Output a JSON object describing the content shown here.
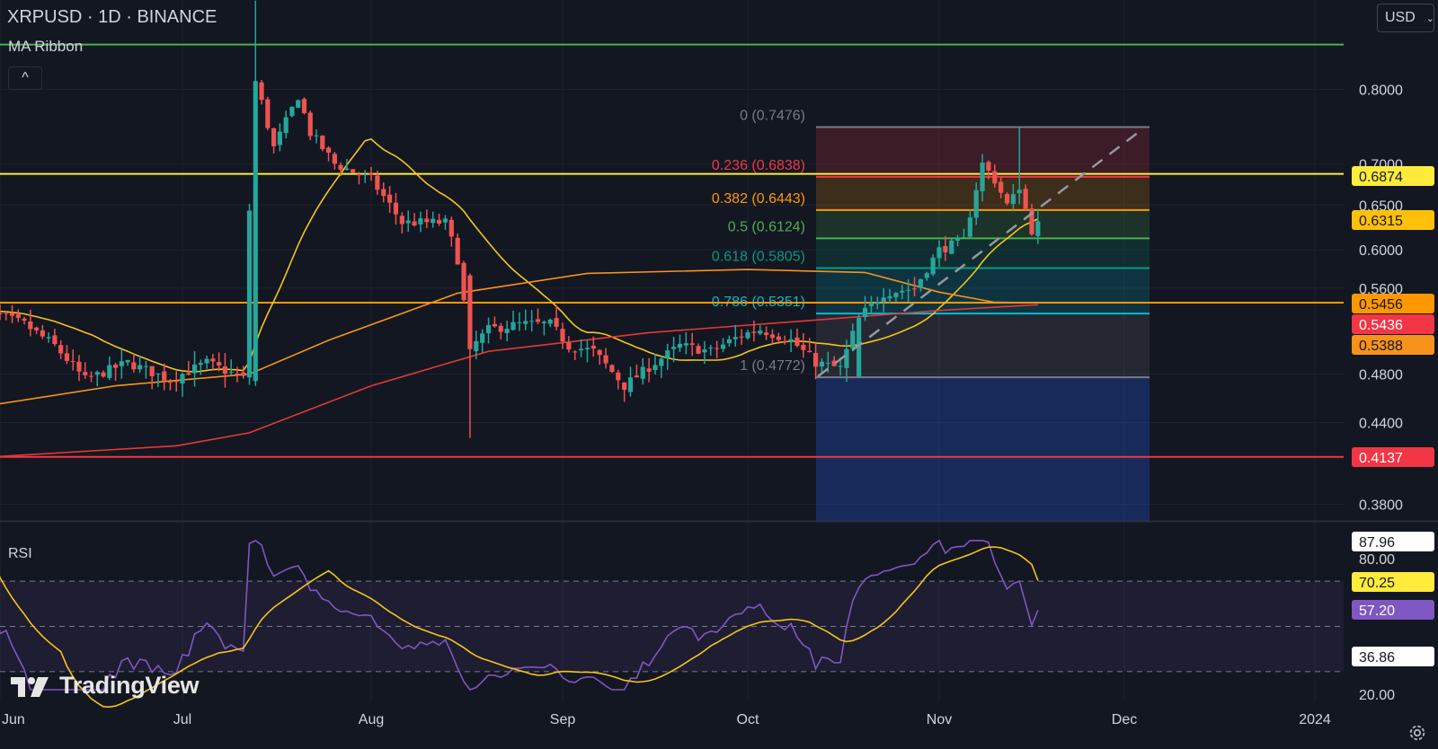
{
  "header": {
    "symbol": "XRPUSD · 1D · BINANCE",
    "indicator": "MA Ribbon",
    "collapse_glyph": "^"
  },
  "currency_selector": {
    "label": "USD",
    "chevron": "⌄"
  },
  "rsi_panel": {
    "label": "RSI"
  },
  "brand": {
    "logo_text": "TradingView",
    "logo_icon": "tradingview-logo-icon"
  },
  "settings": {
    "icon": "gear-icon"
  },
  "colors": {
    "background": "#131722",
    "up": "#26a69a",
    "down": "#ef5350",
    "ma_yellow": "#f5c518",
    "ma_orange": "#f7931a",
    "ma_red": "#e53935",
    "rsi": "#7e57c2",
    "rsi_ma": "#f5c518",
    "hline_green": "#4caf50",
    "hline_yellow": "#ffeb3b",
    "hline_orange": "#ff9800",
    "hline_red": "#f23645"
  },
  "price_axis": {
    "ticks": [
      "0.8000",
      "0.7000",
      "0.6500",
      "0.6000",
      "0.5600",
      "0.4800",
      "0.4400",
      "0.3800"
    ]
  },
  "price_badges": [
    {
      "value": "0.6874",
      "bg": "#ffeb3b",
      "fg": "#131722"
    },
    {
      "value": "0.6315",
      "bg": "#ffc107",
      "fg": "#131722"
    },
    {
      "value": "0.5456",
      "bg": "#ff9800",
      "fg": "#131722"
    },
    {
      "value": "0.5436",
      "bg": "#f23645",
      "fg": "#ffffff"
    },
    {
      "value": "0.5388",
      "bg": "#f7931a",
      "fg": "#131722"
    },
    {
      "value": "0.4137",
      "bg": "#f23645",
      "fg": "#ffffff"
    }
  ],
  "time_axis": [
    "Jun",
    "Jul",
    "Aug",
    "Sep",
    "Oct",
    "Nov",
    "Dec",
    "2024"
  ],
  "horizontal_lines": [
    {
      "price": 0.867,
      "color": "#4caf50"
    },
    {
      "price": 0.6874,
      "color": "#ffeb3b"
    },
    {
      "price": 0.5456,
      "color": "#ff9800"
    },
    {
      "price": 0.4137,
      "color": "#f23645"
    }
  ],
  "fibonacci": {
    "levels": [
      {
        "ratio": "0",
        "price": "0.7476",
        "label": "0 (0.7476)",
        "color": "#787b86",
        "fill": "rgba(242,54,69,0.18)"
      },
      {
        "ratio": "0.236",
        "price": "0.6838",
        "label": "0.236 (0.6838)",
        "color": "#f23645",
        "fill": "rgba(255,152,0,0.18)"
      },
      {
        "ratio": "0.382",
        "price": "0.6443",
        "label": "0.382 (0.6443)",
        "color": "#ff9800",
        "fill": "rgba(76,175,80,0.18)"
      },
      {
        "ratio": "0.5",
        "price": "0.6124",
        "label": "0.5 (0.6124)",
        "color": "#4caf50",
        "fill": "rgba(8,153,129,0.18)"
      },
      {
        "ratio": "0.618",
        "price": "0.5805",
        "label": "0.618 (0.5805)",
        "color": "#089981",
        "fill": "rgba(0,188,212,0.18)"
      },
      {
        "ratio": "0.786",
        "price": "0.5351",
        "label": "0.786 (0.5351)",
        "color": "#00bcd4",
        "fill": "rgba(120,123,134,0.18)"
      },
      {
        "ratio": "1",
        "price": "0.4772",
        "label": "1 (0.4772)",
        "color": "#787b86",
        "fill": "rgba(41,98,255,0.25)"
      }
    ],
    "extension_fill": "rgba(41,98,255,0.25)"
  },
  "rsi": {
    "axis_ticks": [
      "80.00",
      "20.00"
    ],
    "badges": [
      {
        "value": "87.96",
        "bg": "#ffffff",
        "fg": "#131722"
      },
      {
        "value": "70.25",
        "bg": "#ffeb3b",
        "fg": "#131722"
      },
      {
        "value": "57.20",
        "bg": "#7e57c2",
        "fg": "#ffffff"
      },
      {
        "value": "36.86",
        "bg": "#ffffff",
        "fg": "#131722"
      }
    ],
    "bands": {
      "upper": 70,
      "middle": 50,
      "lower": 30
    }
  },
  "chart_data": {
    "type": "candlestick",
    "title": "XRPUSD · 1D · BINANCE",
    "price_range": [
      0.36,
      0.86
    ],
    "annotation_candles": [
      {
        "date": "Jul 13",
        "open": 0.474,
        "high": 0.938,
        "low": 0.47,
        "close": 0.812
      },
      {
        "date": "Aug 17",
        "open": 0.573,
        "high": 0.575,
        "low": 0.428,
        "close": 0.502
      },
      {
        "date": "Oct 19",
        "open": 0.478,
        "high": 0.534,
        "low": 0.4772,
        "close": 0.531
      },
      {
        "date": "Nov 14",
        "open": 0.664,
        "high": 0.7476,
        "low": 0.651,
        "close": 0.668
      }
    ],
    "last_close": 0.6315,
    "ma_last": {
      "ma_yellow": 0.6315,
      "ma_orange": 0.5456,
      "ma_red": 0.5436
    },
    "rsi_last": 57.2,
    "rsi_ma_last": 70.25
  }
}
